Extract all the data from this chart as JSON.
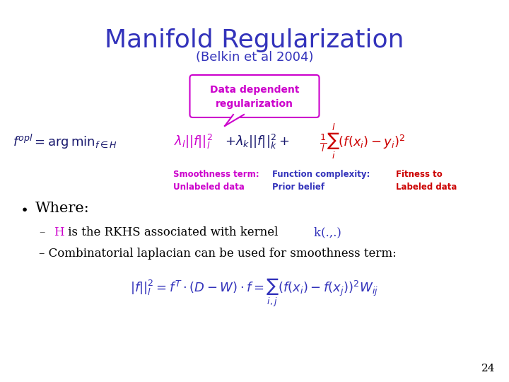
{
  "title": "Manifold Regularization",
  "subtitle": "(Belkin et al 2004)",
  "title_color": "#3333BB",
  "subtitle_color": "#3333BB",
  "box_text": "Data dependent\nregularization",
  "box_color": "#CC00CC",
  "box_bg": "#FFFFFF",
  "label1": "Smoothness term:\nUnlabeled data",
  "label1_color": "#CC00CC",
  "label2": "Function complexity:\nPrior belief",
  "label2_color": "#3333BB",
  "label3": "Fitness to\nLabeled data",
  "label3_color": "#CC0000",
  "dash1_prefix_color": "#CC00CC",
  "dash1_suffix_color": "#3333BB",
  "bottom_formula_color": "#3333BB",
  "page_num": "24",
  "bg_color": "#FFFFFF"
}
